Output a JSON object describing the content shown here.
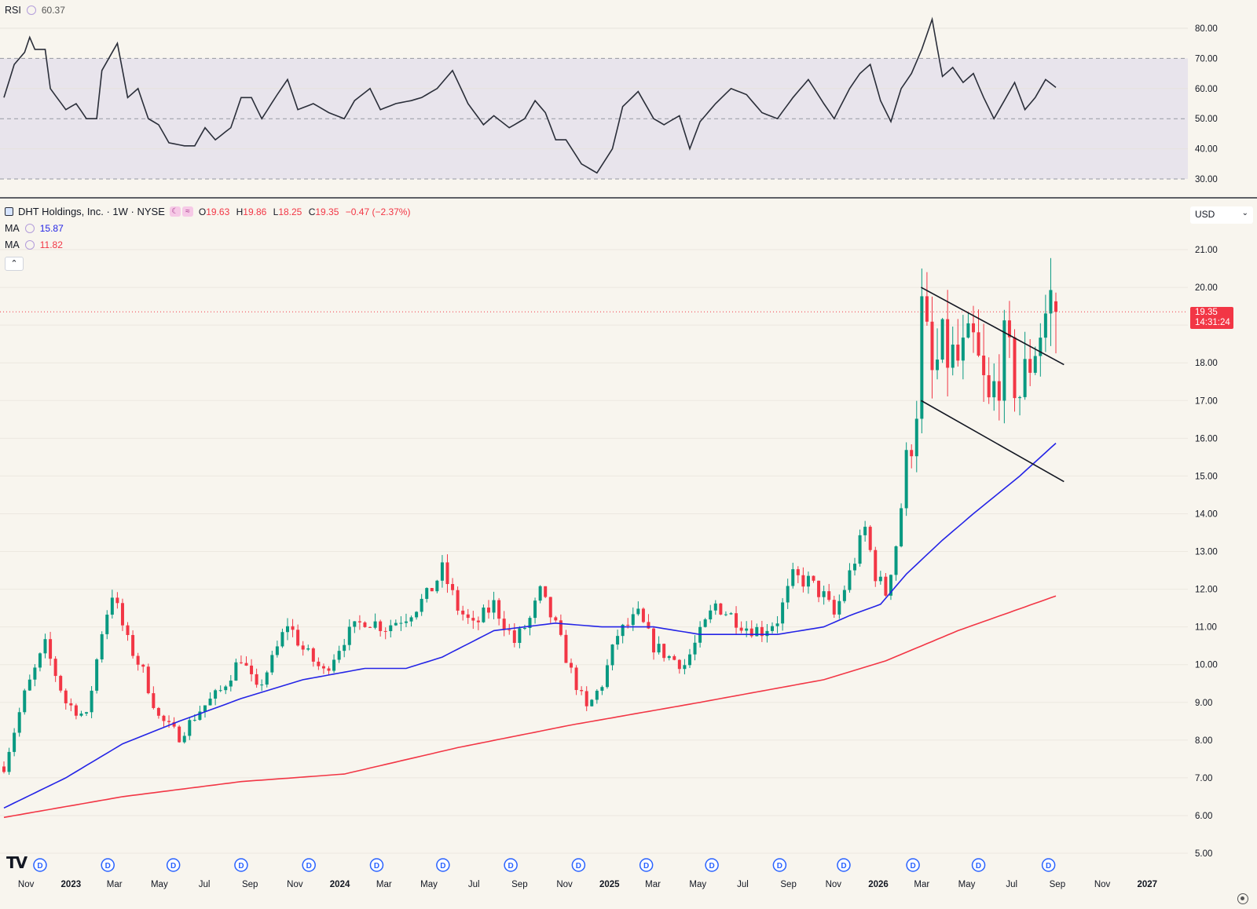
{
  "rsi_legend": {
    "name": "RSI",
    "value": "60.37"
  },
  "header": {
    "symbol": "DHT Holdings, Inc. · 1W · NYSE",
    "open_label": "O",
    "open": "19.63",
    "high_label": "H",
    "high": "19.86",
    "low_label": "L",
    "low": "18.25",
    "close_label": "C",
    "close": "19.35",
    "change": "−0.47 (−2.37%)"
  },
  "ma_legend": [
    {
      "name": "MA",
      "value": "15.87",
      "color": "#2424e6"
    },
    {
      "name": "MA",
      "value": "11.82",
      "color": "#f23645"
    }
  ],
  "currency": "USD",
  "price_tag": {
    "value": "19.35",
    "countdown": "14:31:24"
  },
  "dividend_marker": "D",
  "chart_data": {
    "type": "candlestick",
    "interval": "1W",
    "colors": {
      "up": "#089981",
      "down": "#f23645",
      "ma_fast": "#2424e6",
      "ma_slow": "#f23645",
      "rsi": "#2a2e39",
      "rsi_band": "#e8e4ec",
      "background": "#f8f5ee"
    },
    "price_axis": {
      "ticks": [
        "5.00",
        "6.00",
        "7.00",
        "8.00",
        "9.00",
        "10.00",
        "11.00",
        "12.00",
        "13.00",
        "14.00",
        "15.00",
        "16.00",
        "17.00",
        "18.00",
        "19.00",
        "20.00",
        "21.00"
      ],
      "range": [
        4.4,
        21.4
      ]
    },
    "rsi_axis": {
      "ticks": [
        "30.00",
        "40.00",
        "50.00",
        "60.00",
        "70.00",
        "80.00"
      ],
      "range": [
        25.5,
        85
      ],
      "overbought": 70,
      "oversold": 30,
      "middle": 50
    },
    "time_axis": {
      "labels": [
        {
          "t": "2022-11-01",
          "label": "Nov",
          "bold": false
        },
        {
          "t": "2023-01-01",
          "label": "2023",
          "bold": true
        },
        {
          "t": "2023-03-01",
          "label": "Mar",
          "bold": false
        },
        {
          "t": "2023-05-01",
          "label": "May",
          "bold": false
        },
        {
          "t": "2023-07-01",
          "label": "Jul",
          "bold": false
        },
        {
          "t": "2023-09-01",
          "label": "Sep",
          "bold": false
        },
        {
          "t": "2023-11-01",
          "label": "Nov",
          "bold": false
        },
        {
          "t": "2024-01-01",
          "label": "2024",
          "bold": true
        },
        {
          "t": "2024-03-01",
          "label": "Mar",
          "bold": false
        },
        {
          "t": "2024-05-01",
          "label": "May",
          "bold": false
        },
        {
          "t": "2024-07-01",
          "label": "Jul",
          "bold": false
        },
        {
          "t": "2024-09-01",
          "label": "Sep",
          "bold": false
        },
        {
          "t": "2024-11-01",
          "label": "Nov",
          "bold": false
        },
        {
          "t": "2025-01-01",
          "label": "2025",
          "bold": true
        },
        {
          "t": "2025-03-01",
          "label": "Mar",
          "bold": false
        },
        {
          "t": "2025-05-01",
          "label": "May",
          "bold": false
        },
        {
          "t": "2025-07-01",
          "label": "Jul",
          "bold": false
        },
        {
          "t": "2025-09-01",
          "label": "Sep",
          "bold": false
        },
        {
          "t": "2025-11-01",
          "label": "Nov",
          "bold": false
        },
        {
          "t": "2026-01-01",
          "label": "2026",
          "bold": true
        },
        {
          "t": "2026-03-01",
          "label": "Mar",
          "bold": false
        },
        {
          "t": "2026-05-01",
          "label": "May",
          "bold": false
        },
        {
          "t": "2026-07-01",
          "label": "Jul",
          "bold": false
        },
        {
          "t": "2026-09-01",
          "label": "Sep",
          "bold": false
        },
        {
          "t": "2026-11-01",
          "label": "Nov",
          "bold": false
        },
        {
          "t": "2027-01-01",
          "label": "2027",
          "bold": true
        }
      ]
    },
    "dividend_dates": [
      "2022-11-20",
      "2023-02-20",
      "2023-05-20",
      "2023-08-20",
      "2023-11-20",
      "2024-02-20",
      "2024-05-20",
      "2024-08-20",
      "2024-11-20",
      "2025-02-20",
      "2025-05-20",
      "2025-08-20",
      "2025-11-15",
      "2026-02-17",
      "2026-05-17",
      "2026-08-20"
    ],
    "price_anchors": [
      [
        "2022-10-02",
        7.3
      ],
      [
        "2022-10-30",
        9.2
      ],
      [
        "2022-11-27",
        10.5
      ],
      [
        "2022-12-25",
        9.0
      ],
      [
        "2023-01-22",
        8.6
      ],
      [
        "2023-02-12",
        10.9
      ],
      [
        "2023-02-26",
        11.9
      ],
      [
        "2023-03-19",
        10.6
      ],
      [
        "2023-04-09",
        9.8
      ],
      [
        "2023-04-30",
        8.6
      ],
      [
        "2023-05-28",
        8.1
      ],
      [
        "2023-06-25",
        8.8
      ],
      [
        "2023-07-23",
        9.3
      ],
      [
        "2023-08-20",
        10.2
      ],
      [
        "2023-09-10",
        9.3
      ],
      [
        "2023-10-01",
        10.1
      ],
      [
        "2023-10-22",
        11.1
      ],
      [
        "2023-11-12",
        10.4
      ],
      [
        "2023-12-10",
        9.8
      ],
      [
        "2024-01-07",
        10.7
      ],
      [
        "2024-02-04",
        11.2
      ],
      [
        "2024-03-03",
        11.0
      ],
      [
        "2024-03-31",
        11.3
      ],
      [
        "2024-04-28",
        11.8
      ],
      [
        "2024-05-19",
        12.5
      ],
      [
        "2024-06-09",
        11.5
      ],
      [
        "2024-06-30",
        11.0
      ],
      [
        "2024-07-28",
        11.6
      ],
      [
        "2024-08-25",
        10.6
      ],
      [
        "2024-09-15",
        11.2
      ],
      [
        "2024-09-29",
        11.9
      ],
      [
        "2024-10-20",
        11.0
      ],
      [
        "2024-11-10",
        9.8
      ],
      [
        "2024-12-01",
        8.8
      ],
      [
        "2024-12-22",
        9.5
      ],
      [
        "2025-01-12",
        10.8
      ],
      [
        "2025-02-09",
        11.3
      ],
      [
        "2025-03-02",
        10.5
      ],
      [
        "2025-03-23",
        10.2
      ],
      [
        "2025-04-13",
        10.0
      ],
      [
        "2025-05-04",
        10.8
      ],
      [
        "2025-05-25",
        11.6
      ],
      [
        "2025-06-15",
        11.3
      ],
      [
        "2025-07-06",
        11.0
      ],
      [
        "2025-07-27",
        10.9
      ],
      [
        "2025-08-17",
        11.2
      ],
      [
        "2025-09-07",
        12.3
      ],
      [
        "2025-09-28",
        12.2
      ],
      [
        "2025-10-19",
        11.8
      ],
      [
        "2025-11-02",
        11.3
      ],
      [
        "2025-11-23",
        12.4
      ],
      [
        "2025-12-14",
        13.6
      ],
      [
        "2025-12-28",
        12.4
      ],
      [
        "2026-01-11",
        11.9
      ],
      [
        "2026-01-25",
        13.2
      ],
      [
        "2026-02-08",
        15.2
      ],
      [
        "2026-02-22",
        17.0
      ],
      [
        "2026-03-01",
        19.3
      ],
      [
        "2026-03-15",
        17.6
      ],
      [
        "2026-03-29",
        18.3
      ],
      [
        "2026-04-19",
        18.0
      ],
      [
        "2026-05-10",
        18.4
      ],
      [
        "2026-05-31",
        16.8
      ],
      [
        "2026-06-21",
        18.3
      ],
      [
        "2026-07-12",
        17.2
      ],
      [
        "2026-08-02",
        18.5
      ],
      [
        "2026-08-23",
        19.7
      ],
      [
        "2026-08-30",
        19.35
      ]
    ],
    "ma_fast_anchors": [
      [
        "2022-10-02",
        6.2
      ],
      [
        "2022-12-25",
        7.0
      ],
      [
        "2023-03-12",
        7.9
      ],
      [
        "2023-05-28",
        8.5
      ],
      [
        "2023-08-20",
        9.1
      ],
      [
        "2023-11-12",
        9.6
      ],
      [
        "2024-01-07",
        9.8
      ],
      [
        "2024-02-04",
        9.9
      ],
      [
        "2024-03-31",
        9.9
      ],
      [
        "2024-05-19",
        10.2
      ],
      [
        "2024-07-28",
        10.9
      ],
      [
        "2024-10-20",
        11.1
      ],
      [
        "2024-12-22",
        11.0
      ],
      [
        "2025-03-02",
        11.0
      ],
      [
        "2025-05-04",
        10.8
      ],
      [
        "2025-08-17",
        10.8
      ],
      [
        "2025-10-19",
        11.0
      ],
      [
        "2025-11-23",
        11.3
      ],
      [
        "2026-01-04",
        11.6
      ],
      [
        "2026-02-08",
        12.4
      ],
      [
        "2026-03-29",
        13.3
      ],
      [
        "2026-05-10",
        14.0
      ],
      [
        "2026-07-12",
        15.0
      ],
      [
        "2026-08-30",
        15.87
      ]
    ],
    "ma_slow_anchors": [
      [
        "2022-10-02",
        5.95
      ],
      [
        "2023-03-12",
        6.5
      ],
      [
        "2023-08-20",
        6.9
      ],
      [
        "2024-01-07",
        7.1
      ],
      [
        "2024-06-09",
        7.8
      ],
      [
        "2024-11-10",
        8.4
      ],
      [
        "2025-05-04",
        9.0
      ],
      [
        "2025-10-19",
        9.6
      ],
      [
        "2026-01-11",
        10.1
      ],
      [
        "2026-04-19",
        10.9
      ],
      [
        "2026-08-30",
        11.82
      ]
    ],
    "rsi_anchors": [
      [
        "2022-10-02",
        57
      ],
      [
        "2022-10-16",
        68
      ],
      [
        "2022-10-30",
        72
      ],
      [
        "2022-11-06",
        77
      ],
      [
        "2022-11-13",
        73
      ],
      [
        "2022-11-27",
        73
      ],
      [
        "2022-12-04",
        60
      ],
      [
        "2022-12-25",
        53
      ],
      [
        "2023-01-08",
        55
      ],
      [
        "2023-01-22",
        50
      ],
      [
        "2023-02-05",
        50
      ],
      [
        "2023-02-12",
        66
      ],
      [
        "2023-03-05",
        75
      ],
      [
        "2023-03-19",
        57
      ],
      [
        "2023-04-02",
        60
      ],
      [
        "2023-04-16",
        50
      ],
      [
        "2023-04-30",
        48
      ],
      [
        "2023-05-14",
        42
      ],
      [
        "2023-06-04",
        41
      ],
      [
        "2023-06-18",
        41
      ],
      [
        "2023-07-02",
        47
      ],
      [
        "2023-07-16",
        43
      ],
      [
        "2023-08-06",
        47
      ],
      [
        "2023-08-20",
        57
      ],
      [
        "2023-09-03",
        57
      ],
      [
        "2023-09-17",
        50
      ],
      [
        "2023-10-08",
        58
      ],
      [
        "2023-10-22",
        63
      ],
      [
        "2023-11-05",
        53
      ],
      [
        "2023-11-26",
        55
      ],
      [
        "2023-12-17",
        52
      ],
      [
        "2024-01-07",
        50
      ],
      [
        "2024-01-21",
        56
      ],
      [
        "2024-02-11",
        60
      ],
      [
        "2024-02-25",
        53
      ],
      [
        "2024-03-17",
        55
      ],
      [
        "2024-04-07",
        56
      ],
      [
        "2024-04-21",
        57
      ],
      [
        "2024-05-12",
        60
      ],
      [
        "2024-06-02",
        66
      ],
      [
        "2024-06-23",
        55
      ],
      [
        "2024-07-14",
        48
      ],
      [
        "2024-07-28",
        51
      ],
      [
        "2024-08-18",
        47
      ],
      [
        "2024-09-08",
        50
      ],
      [
        "2024-09-22",
        56
      ],
      [
        "2024-10-06",
        52
      ],
      [
        "2024-10-20",
        43
      ],
      [
        "2024-11-03",
        43
      ],
      [
        "2024-11-24",
        35
      ],
      [
        "2024-12-15",
        32
      ],
      [
        "2025-01-05",
        40
      ],
      [
        "2025-01-19",
        54
      ],
      [
        "2025-02-09",
        59
      ],
      [
        "2025-03-02",
        50
      ],
      [
        "2025-03-16",
        48
      ],
      [
        "2025-04-06",
        51
      ],
      [
        "2025-04-20",
        40
      ],
      [
        "2025-05-04",
        49
      ],
      [
        "2025-05-25",
        55
      ],
      [
        "2025-06-15",
        60
      ],
      [
        "2025-07-06",
        58
      ],
      [
        "2025-07-27",
        52
      ],
      [
        "2025-08-17",
        50
      ],
      [
        "2025-09-07",
        57
      ],
      [
        "2025-09-28",
        63
      ],
      [
        "2025-10-19",
        55
      ],
      [
        "2025-11-02",
        50
      ],
      [
        "2025-11-23",
        60
      ],
      [
        "2025-12-07",
        65
      ],
      [
        "2025-12-21",
        68
      ],
      [
        "2026-01-04",
        56
      ],
      [
        "2026-01-18",
        49
      ],
      [
        "2026-02-01",
        60
      ],
      [
        "2026-02-15",
        65
      ],
      [
        "2026-03-01",
        73
      ],
      [
        "2026-03-15",
        83
      ],
      [
        "2026-03-29",
        64
      ],
      [
        "2026-04-12",
        67
      ],
      [
        "2026-04-26",
        62
      ],
      [
        "2026-05-10",
        65
      ],
      [
        "2026-05-24",
        57
      ],
      [
        "2026-06-07",
        50
      ],
      [
        "2026-06-21",
        56
      ],
      [
        "2026-07-05",
        62
      ],
      [
        "2026-07-19",
        53
      ],
      [
        "2026-08-02",
        57
      ],
      [
        "2026-08-16",
        63
      ],
      [
        "2026-08-30",
        60.37
      ]
    ],
    "trendlines": [
      {
        "from": [
          "2026-02-28",
          20.0
        ],
        "to": [
          "2026-09-10",
          17.95
        ]
      },
      {
        "from": [
          "2026-02-28",
          17.0
        ],
        "to": [
          "2026-09-10",
          14.85
        ]
      }
    ]
  }
}
